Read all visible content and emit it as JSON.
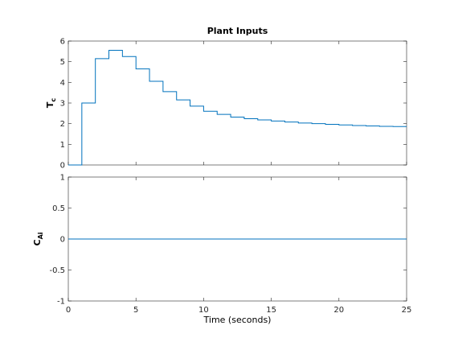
{
  "chart_data": [
    {
      "type": "line",
      "step": true,
      "title": "Plant Inputs",
      "ylabel_main": "T",
      "ylabel_sub": "c",
      "xlim": [
        0,
        25
      ],
      "ylim": [
        0,
        6
      ],
      "xticks": [
        "0",
        "5",
        "10",
        "15",
        "20",
        "25"
      ],
      "yticks": [
        "0",
        "1",
        "2",
        "3",
        "4",
        "5",
        "6"
      ],
      "grid": false,
      "color": "#0072bd",
      "series": [
        {
          "x": [
            0,
            1,
            1,
            2,
            2,
            3,
            3,
            4,
            4,
            5,
            5,
            6,
            6,
            7,
            7,
            8,
            8,
            9,
            9,
            10,
            10,
            11,
            11,
            12,
            12,
            13,
            13,
            14,
            14,
            15,
            15,
            16,
            16,
            17,
            17,
            18,
            18,
            19,
            19,
            20,
            20,
            21,
            21,
            22,
            22,
            23,
            23,
            24,
            24,
            25
          ],
          "y": [
            0,
            0,
            3.0,
            3.0,
            5.15,
            5.15,
            5.55,
            5.55,
            5.25,
            5.25,
            4.65,
            4.65,
            4.05,
            4.05,
            3.55,
            3.55,
            3.15,
            3.15,
            2.85,
            2.85,
            2.6,
            2.6,
            2.45,
            2.45,
            2.32,
            2.32,
            2.24,
            2.24,
            2.18,
            2.18,
            2.13,
            2.13,
            2.08,
            2.08,
            2.03,
            2.03,
            2.0,
            2.0,
            1.97,
            1.97,
            1.94,
            1.94,
            1.91,
            1.91,
            1.89,
            1.89,
            1.87,
            1.87,
            1.86,
            1.86
          ]
        }
      ]
    },
    {
      "type": "line",
      "step": true,
      "title": "",
      "ylabel_main": "C",
      "ylabel_sub": "Ai",
      "xlabel": "Time (seconds)",
      "xlim": [
        0,
        25
      ],
      "ylim": [
        -1,
        1
      ],
      "xticks": [
        "0",
        "5",
        "10",
        "15",
        "20",
        "25"
      ],
      "yticks": [
        "-1",
        "-0.5",
        "0",
        "0.5",
        "1"
      ],
      "grid": false,
      "color": "#0072bd",
      "series": [
        {
          "x": [
            0,
            25
          ],
          "y": [
            0,
            0
          ]
        }
      ]
    }
  ]
}
